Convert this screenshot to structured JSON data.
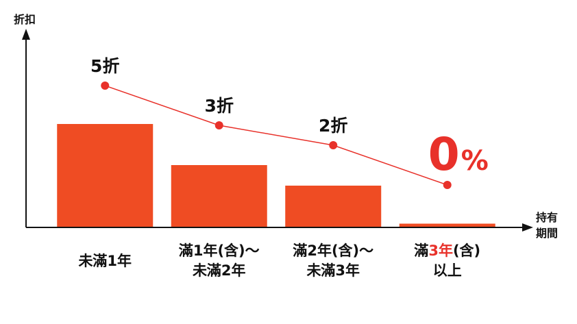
{
  "chart_data": {
    "type": "bar",
    "title": "",
    "ylabel": "折扣",
    "xlabel": [
      "持有",
      "期間"
    ],
    "categories": [
      [
        {
          "text": "未滿1年"
        }
      ],
      [
        {
          "text": "滿1年(含)～"
        },
        {
          "text": "未滿2年"
        }
      ],
      [
        {
          "text": "滿2年(含)～"
        },
        {
          "text": "未滿3年"
        }
      ],
      [
        {
          "text": "滿"
        },
        {
          "text": "3年",
          "accent": true
        },
        {
          "text": "(含)"
        },
        {
          "text": "以上",
          "newline": true
        }
      ]
    ],
    "series": [
      {
        "name": "",
        "type": "bar",
        "values": [
          5,
          3,
          2,
          0.15
        ],
        "color": "#ef4c23"
      },
      {
        "name": "",
        "type": "line",
        "values": [
          5,
          3,
          2,
          0
        ],
        "color": "#e8312a"
      }
    ],
    "data_labels": [
      {
        "number": "5",
        "unit": "折"
      },
      {
        "number": "3",
        "unit": "折"
      },
      {
        "number": "2",
        "unit": "折"
      },
      {
        "number": "0",
        "unit": "%",
        "emphasis": true
      }
    ],
    "accent_color": "#e8312a",
    "bar_color": "#ef4c23",
    "grid": false,
    "legend": "none"
  }
}
